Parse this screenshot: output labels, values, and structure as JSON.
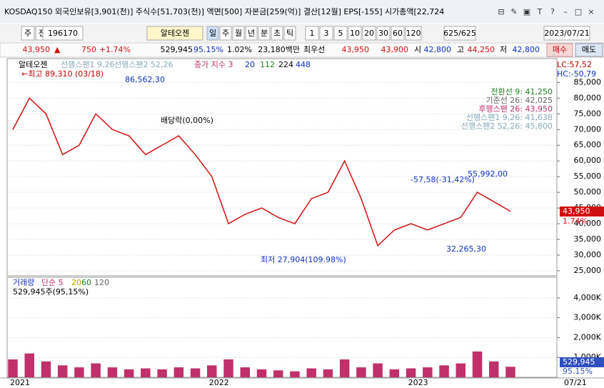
{
  "title_bar": {
    "text": "KOSDAQ150 외국인보유[3,901(천)] 주식수[51,703(천)] 액면[500] 자본금[259(억)] 결산[12월] EPS[-155] 시가총액[22,724",
    "icons": [
      "⊟",
      "✎",
      "▣",
      "T",
      "?",
      "–",
      "□",
      "×"
    ]
  },
  "toolbar": {
    "items": [
      "주",
      "전",
      "196170",
      "알테오젠",
      "일",
      "주",
      "월",
      "년",
      "분",
      "초",
      "틱",
      "1",
      "3",
      "5",
      "10",
      "20",
      "30",
      "60",
      "120",
      "625/625",
      "2023/07/21"
    ]
  },
  "quote": {
    "items": [
      "43,950",
      "▲",
      "750",
      "+1.74%",
      "529,945",
      "95.15%",
      "1.02%",
      "23,180백만",
      "최우선",
      "43,950",
      "43,900",
      "시",
      "42,800",
      "고",
      "44,250",
      "저",
      "42,800"
    ],
    "buy": "매수",
    "sell": "매도"
  },
  "chart_data": [
    {
      "type": "line",
      "legend": [
        "알테오젠",
        "선행스팬1 9,26",
        "선행스팬2 52,26",
        "종가 지수 3",
        "20",
        "112",
        "224",
        "448"
      ],
      "categories": [
        "2021",
        null,
        null,
        null,
        null,
        null,
        null,
        null,
        null,
        null,
        null,
        null,
        "2022",
        null,
        null,
        null,
        null,
        null,
        null,
        null,
        null,
        null,
        null,
        null,
        "2023",
        null,
        null,
        null,
        null,
        null,
        null
      ],
      "x_end_label": "07/21",
      "series": [
        {
          "name": "종가",
          "color": "#d01010",
          "values": [
            70000,
            80000,
            75000,
            62000,
            65000,
            75000,
            70000,
            68000,
            62000,
            65000,
            68000,
            62000,
            55000,
            40000,
            43000,
            45000,
            42000,
            40000,
            48000,
            50000,
            60000,
            48000,
            33000,
            38000,
            40000,
            38000,
            40000,
            42000,
            50000,
            47000,
            43950
          ]
        }
      ],
      "ylim": [
        23400,
        92600
      ],
      "yticks": [
        {
          "value": 85000,
          "label": "85,000"
        },
        {
          "value": 80000,
          "label": "80,000"
        },
        {
          "value": 75000,
          "label": "75,000"
        },
        {
          "value": 70000,
          "label": "70,000"
        },
        {
          "value": 65000,
          "label": "65,000"
        },
        {
          "value": 60000,
          "label": "60,000"
        },
        {
          "value": 55000,
          "label": "55,000"
        },
        {
          "value": 50000,
          "label": "50,000"
        },
        {
          "value": 45000,
          "label": "45,000"
        },
        {
          "value": 40000,
          "label": "40,000"
        },
        {
          "value": 35000,
          "label": "35,000"
        },
        {
          "value": 30000,
          "label": "30,000"
        },
        {
          "value": 25000,
          "label": "25,000"
        }
      ],
      "annotations": [
        "←최고 89,310 (03/18)",
        "86,562,30",
        "배당락(0,00%)",
        "최저 27,904(109.98%)",
        "55,992,00",
        "-57,58(-31,42%)",
        "32,265,30",
        "LC:57,52",
        "HC:-50,79"
      ],
      "indicators": [
        "전환선 9: 41,250",
        "기준선 26: 42,025",
        "후행스팬 26: 43,950",
        "선행스팬1 9,26: 41,638",
        "선행스팬2 52,26: 45,800"
      ],
      "price_box": [
        "43,950",
        "1.74%"
      ]
    },
    {
      "type": "bar",
      "legend": [
        "거래량",
        "단순 5",
        "20",
        "60",
        "120"
      ],
      "subtitle": "529,945주(95,15%)",
      "series": [
        {
          "name": "거래량",
          "color": "#c0306a",
          "values": [
            900000,
            1200000,
            800000,
            600000,
            500000,
            700000,
            500000,
            400000,
            450000,
            400000,
            500000,
            450000,
            600000,
            900000,
            500000,
            400000,
            350000,
            300000,
            450000,
            400000,
            900000,
            500000,
            700000,
            400000,
            450000,
            500000,
            600000,
            700000,
            1300000,
            800000,
            529945
          ]
        }
      ],
      "ylim": [
        0,
        5040000
      ],
      "yticks": [
        {
          "value": 1000000,
          "label": "1,000K"
        },
        {
          "value": 2000000,
          "label": "2,000K"
        },
        {
          "value": 3000000,
          "label": "3,000K"
        },
        {
          "value": 4000000,
          "label": "4,000K"
        }
      ],
      "value_box": [
        "529,945",
        "95.15%"
      ]
    }
  ]
}
